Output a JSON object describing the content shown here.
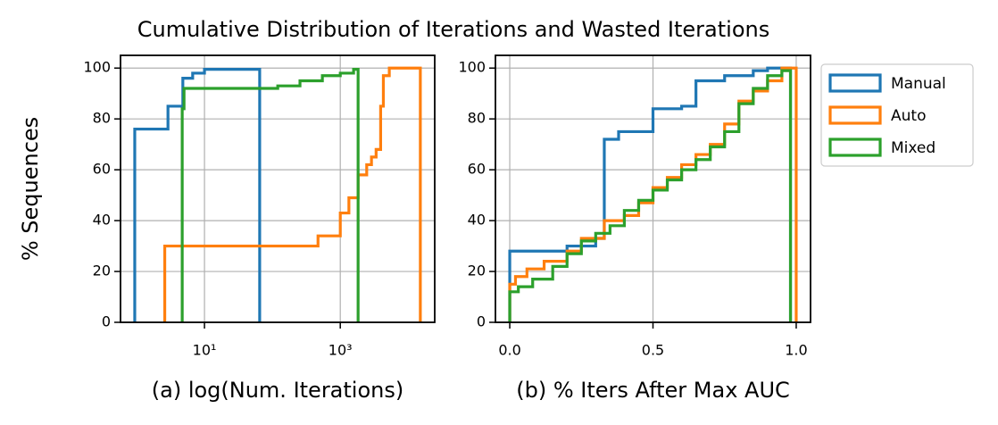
{
  "title": "Cumulative Distribution of Iterations and Wasted Iterations",
  "chart_data": [
    {
      "type": "line",
      "xscale": "log",
      "grid": true,
      "xlabel": "(a) log(Num. Iterations)",
      "ylabel": "% Sequences",
      "xlim": [
        0.58,
        24600
      ],
      "ylim": [
        0,
        105
      ],
      "xticks": [
        {
          "value": 10,
          "label": "10¹"
        },
        {
          "value": 1000,
          "label": "10³"
        }
      ],
      "yticks": [
        0,
        20,
        40,
        60,
        80,
        100
      ],
      "series": [
        {
          "color": "#1f77b4",
          "x": [
            0.94,
            0.94,
            2.9,
            2.9,
            4.8,
            4.8,
            6.7,
            6.7,
            10,
            10,
            65,
            65
          ],
          "values": [
            0,
            76,
            76,
            85,
            85,
            96,
            96,
            98,
            98,
            99.5,
            99.5,
            0
          ]
        },
        {
          "color": "#ff7f0e",
          "x": [
            2.6,
            2.6,
            470,
            470,
            1000,
            1000,
            1340,
            1340,
            1830,
            1830,
            2450,
            2450,
            2880,
            2880,
            3370,
            3370,
            3930,
            3930,
            4310,
            4310,
            5270,
            5270,
            15100,
            15100
          ],
          "values": [
            0,
            30,
            30,
            34,
            34,
            43,
            43,
            49,
            49,
            58,
            58,
            62,
            62,
            65,
            65,
            68,
            68,
            85,
            85,
            97,
            97,
            100,
            100,
            0
          ]
        },
        {
          "color": "#2ca02c",
          "x": [
            4.7,
            4.7,
            5.0,
            5.0,
            120,
            120,
            255,
            255,
            545,
            545,
            1000,
            1000,
            1570,
            1570,
            1830,
            1830
          ],
          "values": [
            0,
            84,
            84,
            92,
            92,
            93,
            93,
            95,
            95,
            97,
            97,
            98,
            98,
            99.5,
            99.5,
            0
          ]
        }
      ]
    },
    {
      "type": "line",
      "grid": true,
      "legend": "outside right",
      "xlabel": "(b) % Iters After Max AUC",
      "xlim": [
        -0.05,
        1.05
      ],
      "ylim": [
        0,
        105
      ],
      "xticks": [
        {
          "value": 0,
          "label": "0.0"
        },
        0.5,
        {
          "value": 1,
          "label": "1.0"
        }
      ],
      "yticks": [
        0,
        20,
        40,
        60,
        80,
        100
      ],
      "series": [
        {
          "name": "Manual",
          "color": "#1f77b4",
          "x": [
            0,
            0,
            0.2,
            0.2,
            0.3,
            0.3,
            0.33,
            0.33,
            0.38,
            0.38,
            0.5,
            0.5,
            0.6,
            0.6,
            0.65,
            0.65,
            0.75,
            0.75,
            0.85,
            0.85,
            0.9,
            0.9,
            0.98,
            0.98
          ],
          "values": [
            0,
            28,
            28,
            30,
            30,
            33,
            33,
            72,
            72,
            75,
            75,
            84,
            84,
            85,
            85,
            95,
            95,
            97,
            97,
            99,
            99,
            100,
            100,
            0
          ]
        },
        {
          "name": "Auto",
          "color": "#ff7f0e",
          "x": [
            0,
            0,
            0.02,
            0.02,
            0.06,
            0.06,
            0.12,
            0.12,
            0.2,
            0.2,
            0.25,
            0.25,
            0.33,
            0.33,
            0.4,
            0.4,
            0.45,
            0.45,
            0.5,
            0.5,
            0.55,
            0.55,
            0.6,
            0.6,
            0.65,
            0.65,
            0.7,
            0.7,
            0.75,
            0.75,
            0.8,
            0.8,
            0.85,
            0.85,
            0.9,
            0.9,
            0.95,
            0.95,
            1.0,
            1.0
          ],
          "values": [
            0,
            15,
            15,
            18,
            18,
            21,
            21,
            24,
            24,
            28,
            28,
            33,
            33,
            40,
            40,
            42,
            42,
            47,
            47,
            53,
            53,
            57,
            57,
            62,
            62,
            66,
            66,
            70,
            70,
            78,
            78,
            87,
            87,
            91,
            91,
            95,
            95,
            100,
            100,
            0
          ]
        },
        {
          "name": "Mixed",
          "color": "#2ca02c",
          "x": [
            0,
            0,
            0.03,
            0.03,
            0.08,
            0.08,
            0.15,
            0.15,
            0.2,
            0.2,
            0.25,
            0.25,
            0.3,
            0.3,
            0.35,
            0.35,
            0.4,
            0.4,
            0.45,
            0.45,
            0.5,
            0.5,
            0.55,
            0.55,
            0.6,
            0.6,
            0.65,
            0.65,
            0.7,
            0.7,
            0.75,
            0.75,
            0.8,
            0.8,
            0.85,
            0.85,
            0.9,
            0.9,
            0.95,
            0.95,
            0.98,
            0.98
          ],
          "values": [
            0,
            12,
            12,
            14,
            14,
            17,
            17,
            22,
            22,
            27,
            27,
            32,
            32,
            35,
            35,
            38,
            38,
            44,
            44,
            48,
            48,
            52,
            52,
            56,
            56,
            60,
            60,
            64,
            64,
            69,
            69,
            75,
            75,
            86,
            86,
            92,
            92,
            97,
            97,
            99,
            99,
            0
          ]
        }
      ]
    }
  ]
}
